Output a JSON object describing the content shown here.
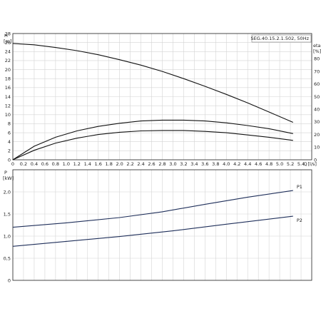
{
  "chart_data": [
    {
      "type": "line",
      "model_label": "SEG.40.15.2.1.502, 50Hz",
      "ylabel": "H",
      "yunit": "[m]",
      "ylabel_right": "eta",
      "yunit_right": "[%]",
      "xlabel": "Q",
      "xunit": "[l/s]",
      "xlim": [
        0,
        5.6
      ],
      "ylim": [
        0,
        28
      ],
      "ylim_right": [
        0,
        100
      ],
      "x_ticks": [
        "0",
        "0.2",
        "0.4",
        "0.6",
        "0.8",
        "1.0",
        "1.2",
        "1.4",
        "1.6",
        "1.8",
        "2.0",
        "2.2",
        "2.4",
        "2.6",
        "2.8",
        "3.0",
        "3.2",
        "3.4",
        "3.6",
        "3.8",
        "4.0",
        "4.2",
        "4.4",
        "4.6",
        "4.8",
        "5.0",
        "5.2",
        "5.4"
      ],
      "y_ticks": [
        "0",
        "2",
        "4",
        "6",
        "8",
        "10",
        "12",
        "14",
        "16",
        "18",
        "20",
        "22",
        "24",
        "26",
        "28"
      ],
      "y_ticks_right": [
        "0",
        "10",
        "20",
        "30",
        "40",
        "50",
        "60",
        "70",
        "80"
      ],
      "grid": true,
      "series": [
        {
          "axis": "left",
          "x": [
            0,
            0.4,
            0.8,
            1.2,
            1.6,
            2.0,
            2.4,
            2.8,
            3.2,
            3.6,
            4.0,
            4.4,
            4.8,
            5.25
          ],
          "values": [
            25.8,
            25.5,
            24.9,
            24.2,
            23.3,
            22.2,
            21.0,
            19.6,
            18.0,
            16.3,
            14.5,
            12.6,
            10.6,
            8.3
          ]
        },
        {
          "axis": "left",
          "x": [
            0,
            0.4,
            0.8,
            1.2,
            1.6,
            2.0,
            2.4,
            2.8,
            3.2,
            3.6,
            4.0,
            4.4,
            4.8,
            5.25
          ],
          "values": [
            0,
            3.0,
            5.0,
            6.4,
            7.4,
            8.1,
            8.6,
            8.8,
            8.8,
            8.6,
            8.2,
            7.6,
            6.9,
            5.8
          ]
        },
        {
          "axis": "left",
          "x": [
            0,
            0.4,
            0.8,
            1.2,
            1.6,
            2.0,
            2.4,
            2.8,
            3.2,
            3.6,
            4.0,
            4.4,
            4.8,
            5.25
          ],
          "values": [
            0,
            2.1,
            3.7,
            4.8,
            5.6,
            6.1,
            6.4,
            6.5,
            6.5,
            6.3,
            6.0,
            5.5,
            5.0,
            4.3
          ]
        }
      ]
    },
    {
      "type": "line",
      "ylabel": "P",
      "yunit": "[kW]",
      "xlim": [
        0,
        5.6
      ],
      "ylim": [
        0,
        2.5
      ],
      "y_ticks": [
        "0",
        "0,5",
        "1,0",
        "1,5",
        "2,0"
      ],
      "y_tick_values": [
        0,
        0.5,
        1.0,
        1.5,
        2.0
      ],
      "grid": true,
      "series": [
        {
          "name": "P1",
          "x": [
            0,
            1.0,
            2.0,
            2.8,
            3.6,
            4.4,
            5.25
          ],
          "values": [
            1.2,
            1.3,
            1.42,
            1.55,
            1.72,
            1.88,
            2.03
          ]
        },
        {
          "name": "P2",
          "x": [
            0,
            1.0,
            2.0,
            3.0,
            4.0,
            5.25
          ],
          "values": [
            0.77,
            0.88,
            0.99,
            1.12,
            1.27,
            1.45
          ]
        }
      ]
    }
  ]
}
